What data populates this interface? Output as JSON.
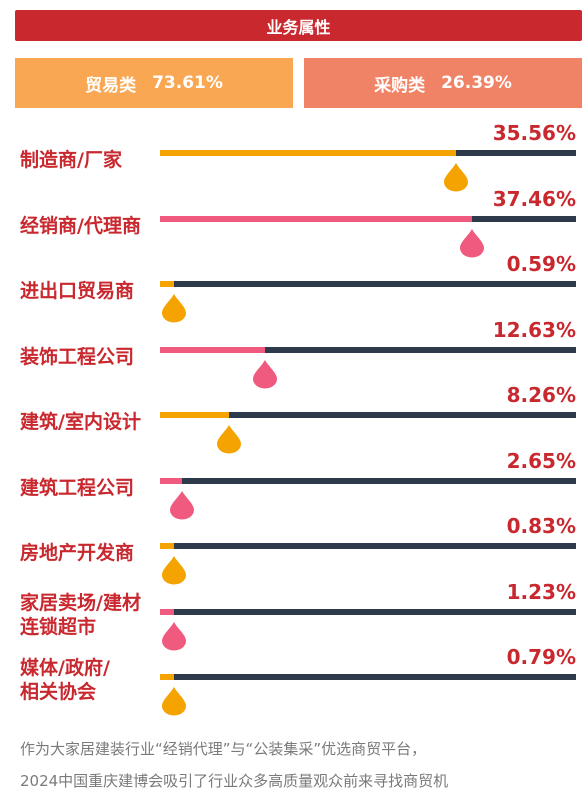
{
  "header": "业务属性",
  "summary": {
    "trade": {
      "label": "贸易类",
      "value": "73.61%"
    },
    "procurement": {
      "label": "采购类",
      "value": "26.39%"
    }
  },
  "chart_data": {
    "type": "bar",
    "categories": [
      "制造商/厂家",
      "经销商/代理商",
      "进出口贸易商",
      "装饰工程公司",
      "建筑/室内设计",
      "建筑工程公司",
      "房地产开发商",
      "家居卖场/建材连锁超市",
      "媒体/政府/相关协会"
    ],
    "category_lines": [
      [
        "制造商/厂家"
      ],
      [
        "经销商/代理商"
      ],
      [
        "进出口贸易商"
      ],
      [
        "装饰工程公司"
      ],
      [
        "建筑/室内设计"
      ],
      [
        "建筑工程公司"
      ],
      [
        "房地产开发商"
      ],
      [
        "家居卖场/建材",
        "连锁超市"
      ],
      [
        "媒体/政府/",
        "相关协会"
      ]
    ],
    "values": [
      35.56,
      37.46,
      0.59,
      12.63,
      8.26,
      2.65,
      0.83,
      1.23,
      0.79
    ],
    "value_labels": [
      "35.56%",
      "37.46%",
      "0.59%",
      "12.63%",
      "8.26%",
      "2.65%",
      "0.83%",
      "1.23%",
      "0.79%"
    ],
    "colors": [
      "#f5a300",
      "#f05a7e",
      "#f5a300",
      "#f05a7e",
      "#f5a300",
      "#f05a7e",
      "#f5a300",
      "#f05a7e",
      "#f5a300"
    ],
    "track_color": "#2d3a4b",
    "xlim": [
      0,
      50
    ]
  },
  "footer": [
    "作为大家居建装行业“经销代理”与“公装集采”优选商贸平台，",
    "2024中国重庆建博会吸引了行业众多高质量观众前来寻找商贸机"
  ]
}
